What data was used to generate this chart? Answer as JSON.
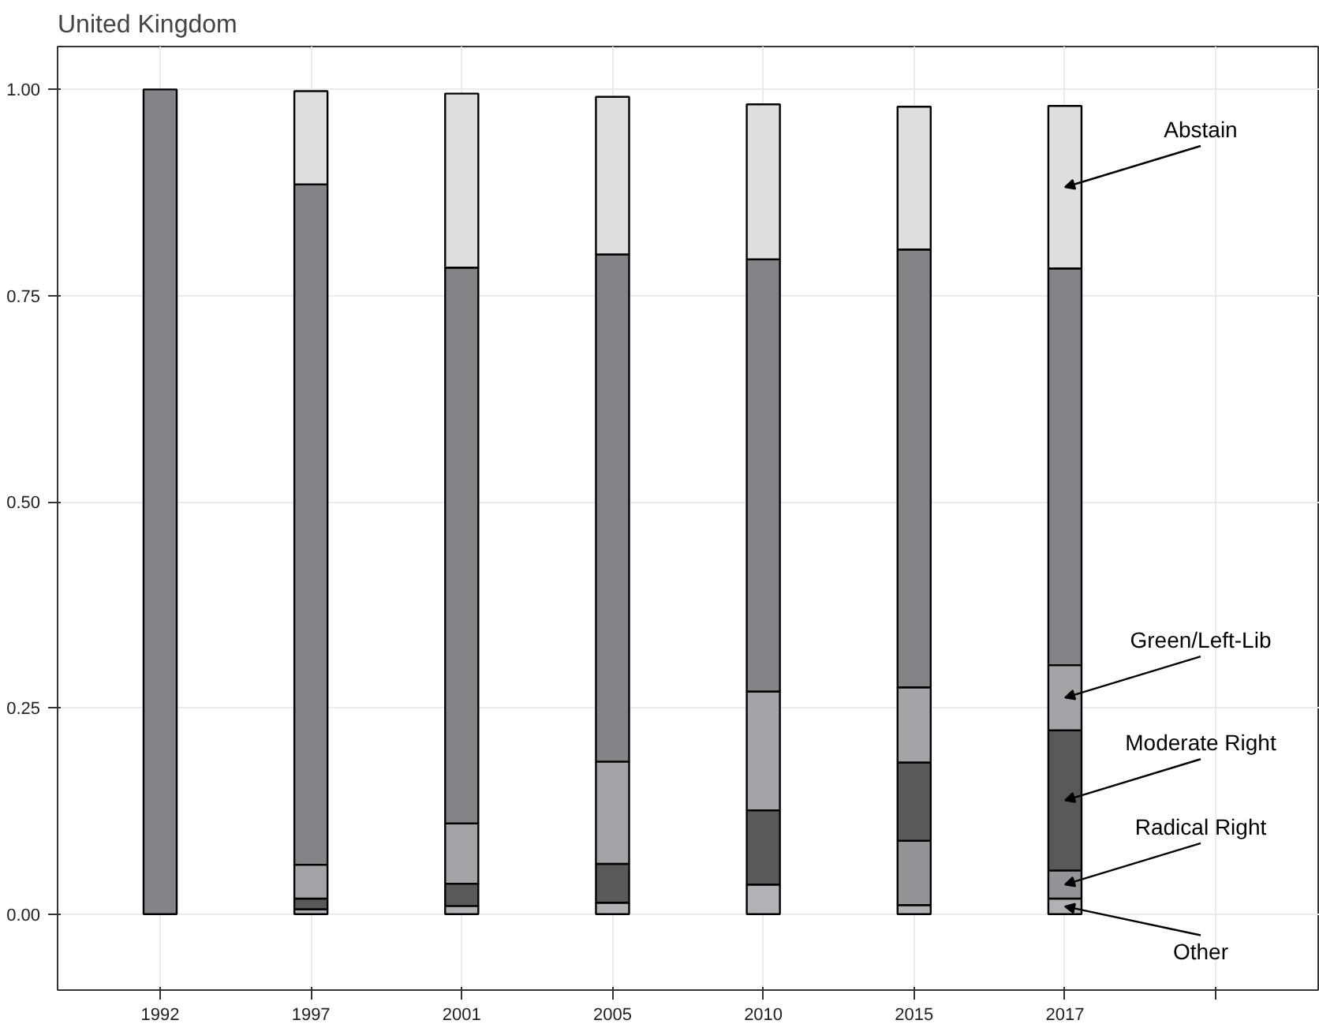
{
  "chart_data": {
    "type": "bar",
    "stacked": true,
    "title": "United Kingdom",
    "categories": [
      "1992",
      "1997",
      "2001",
      "2005",
      "2010",
      "2015",
      "2017",
      null
    ],
    "series": [
      {
        "name": "Other",
        "color": "#b1b2b5",
        "values": [
          null,
          0.006,
          0.01,
          0.014,
          0.036,
          0.011,
          0.019,
          null
        ]
      },
      {
        "name": "Radical Right",
        "color": "#939497",
        "values": [
          null,
          null,
          null,
          null,
          null,
          0.078,
          0.034,
          null
        ]
      },
      {
        "name": "Moderate Right",
        "color": "#59595c",
        "values": [
          null,
          0.013,
          0.027,
          0.047,
          0.09,
          0.095,
          0.17,
          null
        ]
      },
      {
        "name": "Green/Left-Lib",
        "color": "#a3a4a7",
        "values": [
          null,
          0.041,
          0.073,
          0.124,
          0.144,
          0.091,
          0.079,
          null
        ]
      },
      {
        "color": "#838488",
        "values": [
          1.0,
          0.825,
          0.674,
          0.615,
          0.524,
          0.531,
          0.481,
          null
        ]
      },
      {
        "name": "Abstain",
        "color": "#dddee0",
        "values": [
          null,
          0.113,
          0.211,
          0.191,
          0.188,
          0.173,
          0.197,
          null
        ]
      }
    ],
    "ylim": [
      -0.092,
      1.052
    ],
    "yticks": [
      {
        "value": 0,
        "label": "0.00"
      },
      {
        "value": 0.25,
        "label": "0.25"
      },
      {
        "value": 0.5,
        "label": "0.50"
      },
      {
        "value": 0.75,
        "label": "0.75"
      },
      {
        "value": 1.0,
        "label": "1.00"
      }
    ],
    "grid": true
  }
}
